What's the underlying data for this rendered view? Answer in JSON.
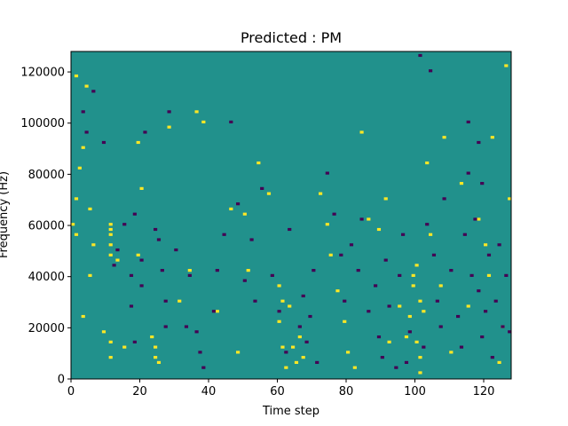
{
  "chart_data": {
    "type": "heatmap",
    "title": "Predicted : PM",
    "xlabel": "Time step",
    "ylabel": "Frequency (Hz)",
    "xlim": [
      0,
      128
    ],
    "ylim": [
      0,
      128000
    ],
    "x_ticks": [
      0,
      20,
      40,
      60,
      80,
      100,
      120
    ],
    "y_ticks": [
      0,
      20000,
      40000,
      60000,
      80000,
      100000,
      120000
    ],
    "n_time_steps": 128,
    "n_freq_bins": 128,
    "bin_hz": 1000,
    "colormap": "viridis",
    "levels": [
      -1,
      0,
      1
    ],
    "background_level": 0,
    "colors": {
      "low": "#440154",
      "mid": "#21918c",
      "high": "#fde725"
    },
    "grid": false,
    "cells_high": [
      [
        1,
        118
      ],
      [
        2,
        82
      ],
      [
        3,
        24
      ],
      [
        4,
        114
      ],
      [
        1,
        56
      ],
      [
        0,
        60
      ],
      [
        1,
        70
      ],
      [
        3,
        90
      ],
      [
        5,
        66
      ],
      [
        6,
        52
      ],
      [
        5,
        40
      ],
      [
        9,
        18
      ],
      [
        11,
        48
      ],
      [
        11,
        52
      ],
      [
        11,
        56
      ],
      [
        11,
        58
      ],
      [
        11,
        60
      ],
      [
        11,
        14
      ],
      [
        11,
        8
      ],
      [
        13,
        46
      ],
      [
        15,
        12
      ],
      [
        19,
        48
      ],
      [
        19,
        92
      ],
      [
        20,
        74
      ],
      [
        23,
        16
      ],
      [
        24,
        12
      ],
      [
        24,
        8
      ],
      [
        25,
        6
      ],
      [
        28,
        98
      ],
      [
        31,
        30
      ],
      [
        34,
        42
      ],
      [
        36,
        104
      ],
      [
        38,
        100
      ],
      [
        42,
        26
      ],
      [
        46,
        66
      ],
      [
        48,
        10
      ],
      [
        50,
        64
      ],
      [
        51,
        42
      ],
      [
        54,
        84
      ],
      [
        57,
        72
      ],
      [
        60,
        36
      ],
      [
        61,
        30
      ],
      [
        60,
        22
      ],
      [
        61,
        12
      ],
      [
        62,
        4
      ],
      [
        63,
        28
      ],
      [
        64,
        12
      ],
      [
        65,
        6
      ],
      [
        66,
        16
      ],
      [
        67,
        8
      ],
      [
        72,
        72
      ],
      [
        74,
        60
      ],
      [
        75,
        48
      ],
      [
        77,
        34
      ],
      [
        79,
        22
      ],
      [
        80,
        10
      ],
      [
        82,
        4
      ],
      [
        84,
        96
      ],
      [
        86,
        62
      ],
      [
        89,
        58
      ],
      [
        91,
        70
      ],
      [
        92,
        14
      ],
      [
        95,
        28
      ],
      [
        97,
        16
      ],
      [
        98,
        24
      ],
      [
        99,
        36
      ],
      [
        100,
        44
      ],
      [
        101,
        8
      ],
      [
        102,
        26
      ],
      [
        103,
        84
      ],
      [
        104,
        56
      ],
      [
        107,
        36
      ],
      [
        108,
        94
      ],
      [
        110,
        10
      ],
      [
        113,
        76
      ],
      [
        115,
        28
      ],
      [
        118,
        62
      ],
      [
        120,
        52
      ],
      [
        121,
        40
      ],
      [
        122,
        94
      ],
      [
        124,
        6
      ],
      [
        125,
        20
      ],
      [
        126,
        122
      ],
      [
        127,
        70
      ],
      [
        101,
        30
      ],
      [
        101,
        2
      ],
      [
        100,
        14
      ],
      [
        99,
        40
      ]
    ],
    "cells_low": [
      [
        3,
        104
      ],
      [
        4,
        96
      ],
      [
        6,
        112
      ],
      [
        9,
        92
      ],
      [
        12,
        44
      ],
      [
        13,
        50
      ],
      [
        15,
        60
      ],
      [
        17,
        40
      ],
      [
        17,
        28
      ],
      [
        18,
        14
      ],
      [
        18,
        64
      ],
      [
        20,
        36
      ],
      [
        20,
        46
      ],
      [
        21,
        96
      ],
      [
        24,
        58
      ],
      [
        25,
        54
      ],
      [
        26,
        42
      ],
      [
        27,
        30
      ],
      [
        27,
        20
      ],
      [
        28,
        104
      ],
      [
        30,
        50
      ],
      [
        33,
        20
      ],
      [
        34,
        40
      ],
      [
        36,
        18
      ],
      [
        37,
        10
      ],
      [
        38,
        4
      ],
      [
        41,
        26
      ],
      [
        42,
        42
      ],
      [
        44,
        56
      ],
      [
        46,
        100
      ],
      [
        48,
        68
      ],
      [
        50,
        38
      ],
      [
        52,
        54
      ],
      [
        53,
        30
      ],
      [
        55,
        74
      ],
      [
        58,
        40
      ],
      [
        60,
        26
      ],
      [
        62,
        10
      ],
      [
        63,
        58
      ],
      [
        66,
        20
      ],
      [
        67,
        32
      ],
      [
        68,
        14
      ],
      [
        69,
        24
      ],
      [
        70,
        42
      ],
      [
        71,
        6
      ],
      [
        74,
        80
      ],
      [
        76,
        64
      ],
      [
        78,
        48
      ],
      [
        79,
        30
      ],
      [
        81,
        52
      ],
      [
        83,
        42
      ],
      [
        84,
        62
      ],
      [
        86,
        26
      ],
      [
        88,
        36
      ],
      [
        89,
        16
      ],
      [
        90,
        8
      ],
      [
        91,
        46
      ],
      [
        92,
        28
      ],
      [
        94,
        4
      ],
      [
        95,
        40
      ],
      [
        96,
        56
      ],
      [
        97,
        6
      ],
      [
        98,
        18
      ],
      [
        102,
        12
      ],
      [
        103,
        60
      ],
      [
        105,
        48
      ],
      [
        106,
        30
      ],
      [
        107,
        20
      ],
      [
        108,
        70
      ],
      [
        110,
        42
      ],
      [
        112,
        24
      ],
      [
        113,
        12
      ],
      [
        114,
        56
      ],
      [
        115,
        80
      ],
      [
        116,
        40
      ],
      [
        117,
        62
      ],
      [
        118,
        34
      ],
      [
        119,
        16
      ],
      [
        120,
        26
      ],
      [
        121,
        48
      ],
      [
        122,
        8
      ],
      [
        123,
        30
      ],
      [
        124,
        52
      ],
      [
        125,
        20
      ],
      [
        126,
        40
      ],
      [
        127,
        18
      ],
      [
        101,
        126
      ],
      [
        104,
        120
      ],
      [
        115,
        100
      ],
      [
        118,
        92
      ],
      [
        119,
        76
      ]
    ]
  }
}
